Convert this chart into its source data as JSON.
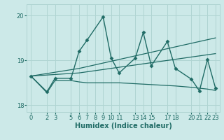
{
  "xlabel": "Humidex (Indice chaleur)",
  "bg_color": "#cce9e8",
  "grid_color": "#b0d4d2",
  "line_color": "#1f6b65",
  "xlim": [
    -0.5,
    23.5
  ],
  "ylim": [
    17.85,
    20.25
  ],
  "yticks": [
    18,
    19,
    20
  ],
  "xticks": [
    0,
    2,
    3,
    5,
    6,
    7,
    8,
    9,
    10,
    11,
    13,
    14,
    15,
    17,
    18,
    20,
    21,
    22,
    23
  ],
  "lines": [
    {
      "x": [
        0,
        2,
        3,
        5,
        6,
        7,
        9,
        10,
        11,
        13,
        14,
        15,
        17,
        18,
        20,
        21,
        22,
        23
      ],
      "y": [
        18.65,
        18.3,
        18.6,
        18.6,
        19.2,
        19.45,
        19.97,
        19.05,
        18.72,
        19.05,
        19.62,
        18.88,
        19.42,
        18.82,
        18.58,
        18.32,
        19.02,
        18.38
      ],
      "marker": "D",
      "ms": 2.5,
      "lw": 1.0
    },
    {
      "x": [
        0,
        6,
        23
      ],
      "y": [
        18.65,
        18.82,
        19.5
      ],
      "marker": null,
      "ms": 0,
      "lw": 0.9
    },
    {
      "x": [
        0,
        6,
        23
      ],
      "y": [
        18.65,
        18.72,
        19.15
      ],
      "marker": null,
      "ms": 0,
      "lw": 0.9
    },
    {
      "x": [
        0,
        2,
        3,
        5,
        6,
        7,
        8,
        9,
        10,
        11,
        13,
        14,
        15,
        17,
        18,
        20,
        21,
        22,
        23
      ],
      "y": [
        18.65,
        18.28,
        18.55,
        18.55,
        18.52,
        18.5,
        18.5,
        18.5,
        18.5,
        18.5,
        18.48,
        18.47,
        18.46,
        18.44,
        18.43,
        18.4,
        18.38,
        18.36,
        18.33
      ],
      "marker": null,
      "ms": 0,
      "lw": 0.9
    }
  ]
}
